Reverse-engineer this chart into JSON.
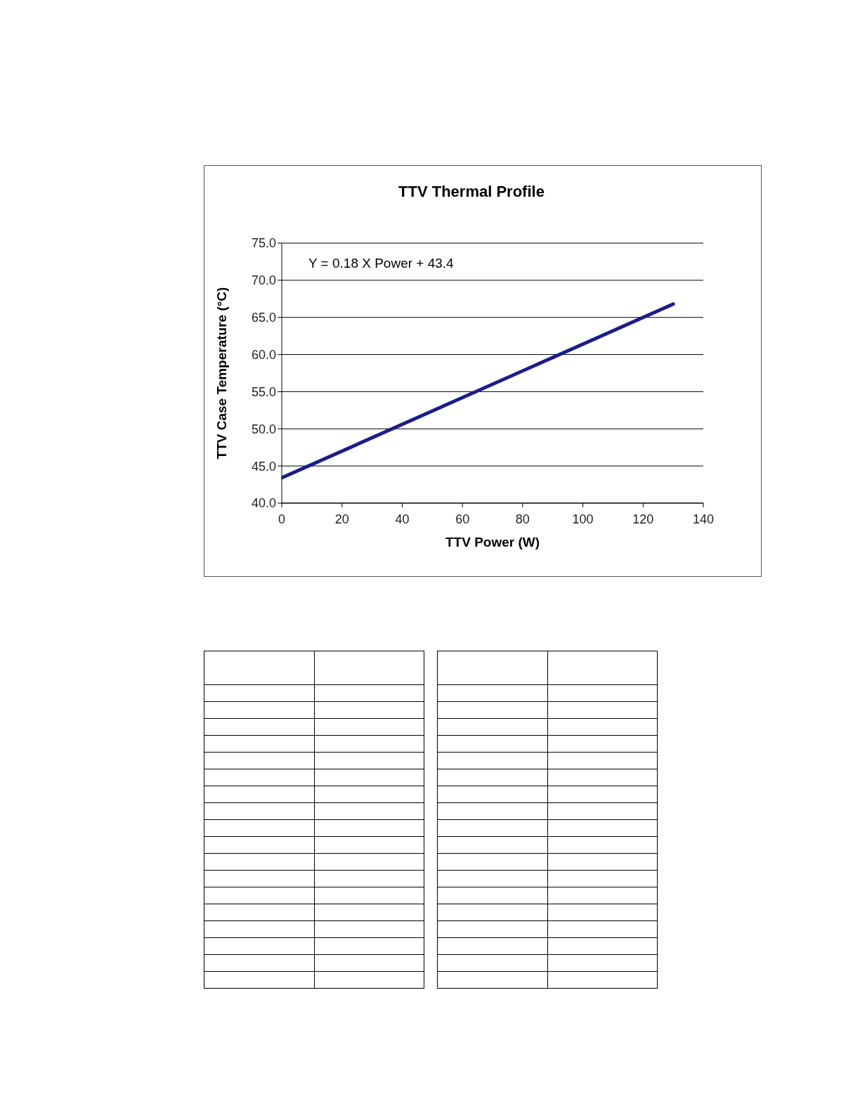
{
  "chart_data": {
    "type": "line",
    "title": "TTV Thermal Profile",
    "xlabel": "TTV Power (W)",
    "ylabel": "TTV Case Temperature  (°C)",
    "annotations": [
      "Y = 0.18 X Power + 43.4"
    ],
    "x": [
      0,
      130
    ],
    "series": [
      {
        "color": "#1c1c8c",
        "values": [
          43.4,
          66.8
        ]
      }
    ],
    "xlim": [
      0,
      140
    ],
    "xticks": [
      0,
      20,
      40,
      60,
      80,
      100,
      120,
      140
    ],
    "ylim": [
      40,
      75
    ],
    "yticks": [
      {
        "value": 40,
        "label": "40.0"
      },
      {
        "value": 45,
        "label": "45.0"
      },
      {
        "value": 50,
        "label": "50.0"
      },
      {
        "value": 55,
        "label": "55.0"
      },
      {
        "value": 60,
        "label": "60.0"
      },
      {
        "value": 65,
        "label": "65.0"
      },
      {
        "value": 70,
        "label": "70.0"
      },
      {
        "value": 75,
        "label": "75.0"
      }
    ],
    "grid": "y",
    "legend": false,
    "marker": "none",
    "line_style": "solid"
  }
}
